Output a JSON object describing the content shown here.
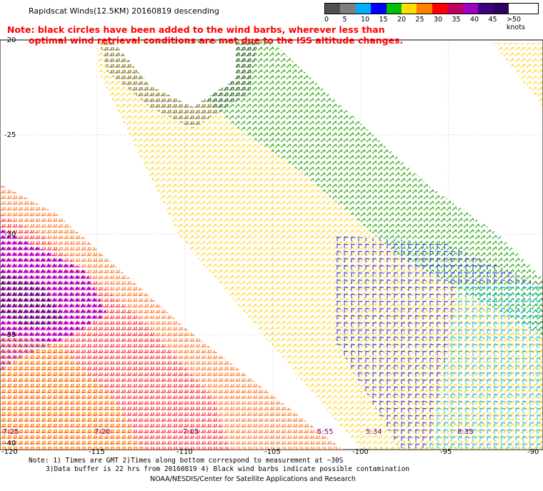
{
  "title": "Rapidscat Winds(12.5KM) 20160819 descending",
  "note_line1": "Note: black circles have been added to the wind barbs, wherever less than",
  "note_line2": "optimal wind retrieval conditions are met due to the ISS altitude changes.",
  "legend": {
    "labels": [
      "0",
      "5",
      "10",
      "15",
      "20",
      "25",
      "30",
      "35",
      "40",
      "45",
      ">50 knots"
    ],
    "colors": [
      "#505050",
      "#7f7f7f",
      "#00b0ff",
      "#0000ff",
      "#00c000",
      "#ffe000",
      "#ff8000",
      "#ff0000",
      "#c00060",
      "#a000c0",
      "#400080",
      "#300060"
    ]
  },
  "axes": {
    "x_ticks": [
      "-120",
      "-115",
      "-110",
      "-105",
      "-100",
      "-95",
      "-90"
    ],
    "y_ticks": [
      "-20",
      "-25",
      "-30",
      "-35",
      "-40"
    ]
  },
  "time_labels": [
    "7:25",
    "7:20",
    "7:05",
    "5:55",
    "5:34",
    "8:35"
  ],
  "footer": {
    "line1": "Note: 1) Times are GMT 2)Times along bottom correspond to measurement at ~30S",
    "line2": "3)Data buffer is 22 hrs from 20160819 4) Black wind barbs indicate possible contamination",
    "line3": "NOAA/NESDIS/Center for Satellite Applications and Research"
  }
}
